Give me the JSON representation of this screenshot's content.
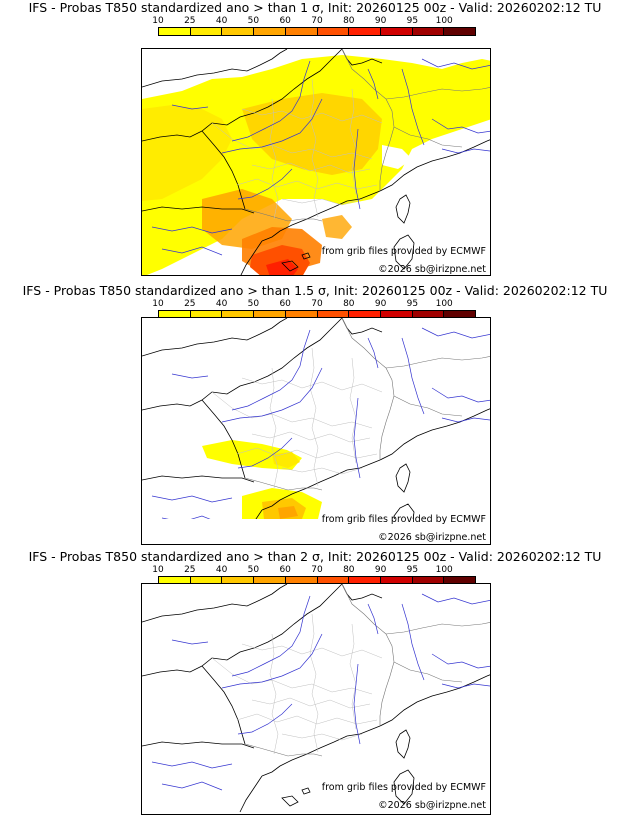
{
  "colors": {
    "scale": [
      "#ffff00",
      "#ffea00",
      "#ffc800",
      "#ffa500",
      "#ff8000",
      "#ff5000",
      "#ff2000",
      "#d00000",
      "#a00000",
      "#600000"
    ],
    "coast": "#000000",
    "river": "#3030d0",
    "border": "#a0a0a0"
  },
  "colorbar": {
    "labels": [
      "10",
      "25",
      "40",
      "50",
      "60",
      "70",
      "80",
      "90",
      "95",
      "100"
    ]
  },
  "panels": [
    {
      "title": "IFS - Probas T850  standardized ano > than 1 σ, Init: 20260125 00z - Valid: 20260202:12 TU",
      "credit_source": "from grib files provided by ECMWF",
      "credit_copyright": "©2026 sb@irizpne.net"
    },
    {
      "title": "IFS - Probas T850  standardized ano > than 1.5 σ, Init: 20260125 00z - Valid: 20260202:12 TU",
      "credit_source": "from grib files provided by ECMWF",
      "credit_copyright": "©2026 sb@irizpne.net"
    },
    {
      "title": "IFS - Probas T850  standardized ano > than 2 σ, Init: 20260125 00z - Valid: 20260202:12 TU",
      "credit_source": "from grib files provided by ECMWF",
      "credit_copyright": "©2026 sb@irizpne.net"
    }
  ]
}
